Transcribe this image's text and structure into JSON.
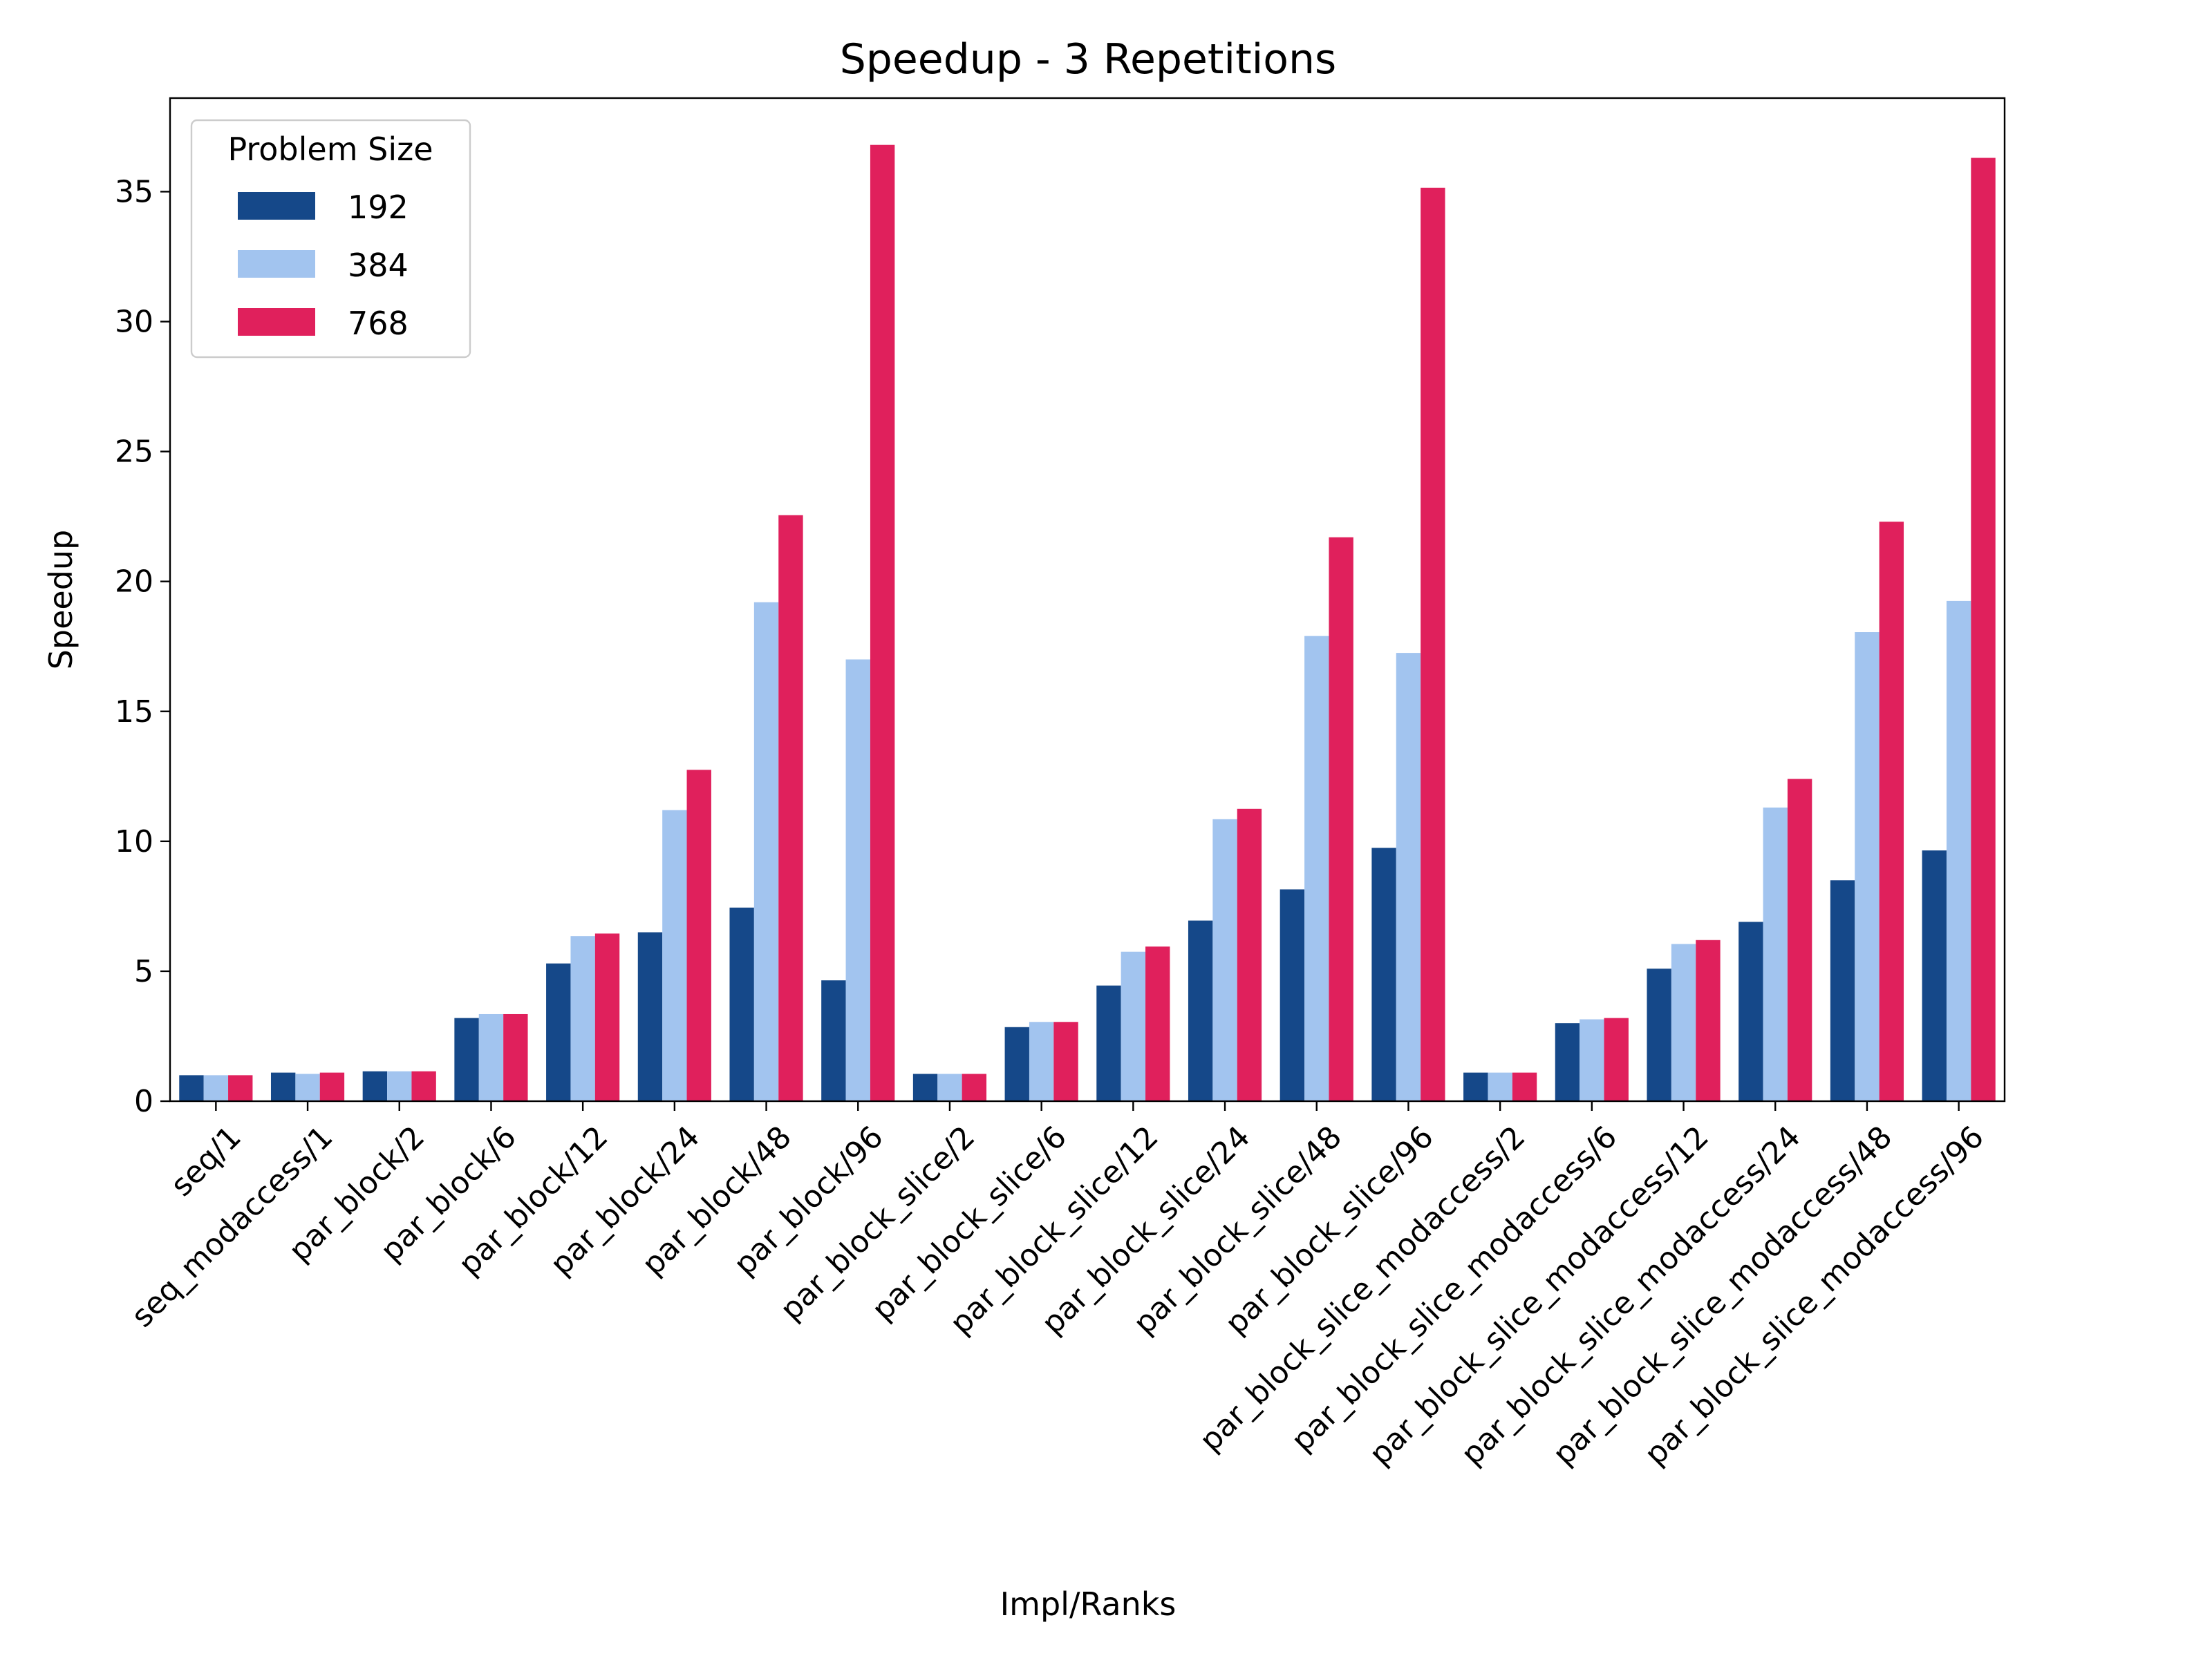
{
  "chart_data": {
    "type": "bar",
    "title": "Speedup - 3 Repetitions",
    "xlabel": "Impl/Ranks",
    "ylabel": "Speedup",
    "ylim": [
      0,
      38.6
    ],
    "yticks": [
      0,
      5,
      10,
      15,
      20,
      25,
      30,
      35
    ],
    "grid": false,
    "legend": {
      "title": "Problem Size",
      "position": "top-left"
    },
    "categories": [
      "seq/1",
      "seq_modaccess/1",
      "par_block/2",
      "par_block/6",
      "par_block/12",
      "par_block/24",
      "par_block/48",
      "par_block/96",
      "par_block_slice/2",
      "par_block_slice/6",
      "par_block_slice/12",
      "par_block_slice/24",
      "par_block_slice/48",
      "par_block_slice/96",
      "par_block_slice_modaccess/2",
      "par_block_slice_modaccess/6",
      "par_block_slice_modaccess/12",
      "par_block_slice_modaccess/24",
      "par_block_slice_modaccess/48",
      "par_block_slice_modaccess/96"
    ],
    "series": [
      {
        "name": "192",
        "color": "#154889",
        "values": [
          1.0,
          1.1,
          1.15,
          3.2,
          5.3,
          6.5,
          7.45,
          4.65,
          1.05,
          2.85,
          4.45,
          6.95,
          8.15,
          9.75,
          1.1,
          3.0,
          5.1,
          6.9,
          8.5,
          9.65
        ]
      },
      {
        "name": "384",
        "color": "#a2c4ef",
        "values": [
          1.0,
          1.05,
          1.15,
          3.35,
          6.35,
          11.2,
          19.2,
          17.0,
          1.05,
          3.05,
          5.75,
          10.85,
          17.9,
          17.25,
          1.1,
          3.15,
          6.05,
          11.3,
          18.05,
          19.25
        ]
      },
      {
        "name": "768",
        "color": "#e0205c",
        "values": [
          1.0,
          1.1,
          1.15,
          3.35,
          6.45,
          12.75,
          22.55,
          36.8,
          1.05,
          3.05,
          5.95,
          11.25,
          21.7,
          35.15,
          1.1,
          3.2,
          6.2,
          12.4,
          22.3,
          36.3
        ]
      }
    ]
  }
}
